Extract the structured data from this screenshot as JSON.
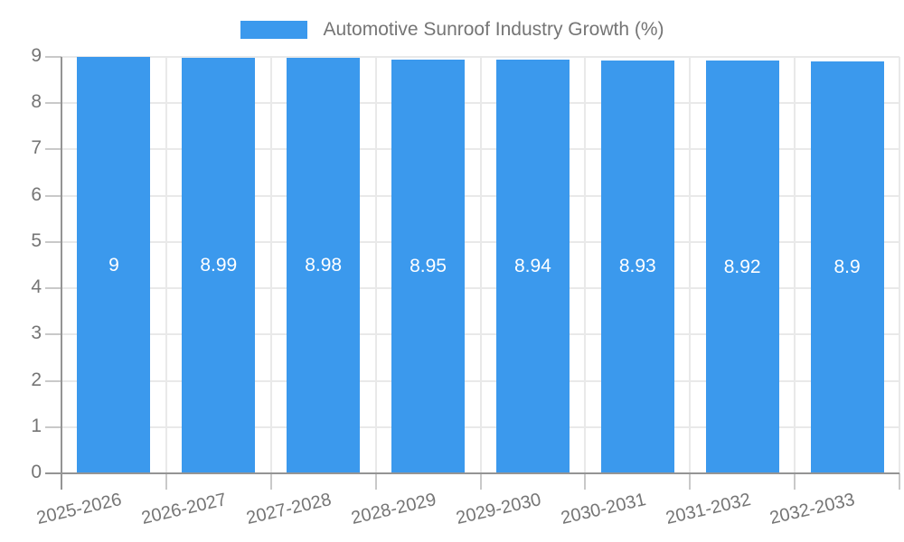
{
  "chart_data": {
    "type": "bar",
    "legend": {
      "position": "top",
      "label": "Automotive Sunroof Industry Growth (%)"
    },
    "categories": [
      "2025-2026",
      "2026-2027",
      "2027-2028",
      "2028-2029",
      "2029-2030",
      "2030-2031",
      "2031-2032",
      "2032-2033"
    ],
    "series": [
      {
        "name": "Automotive Sunroof Industry Growth (%)",
        "values": [
          9,
          8.99,
          8.98,
          8.95,
          8.94,
          8.93,
          8.92,
          8.9
        ]
      }
    ],
    "bar_value_labels": [
      "9",
      "8.99",
      "8.98",
      "8.95",
      "8.94",
      "8.93",
      "8.92",
      "8.9"
    ],
    "ylim": [
      0,
      9
    ],
    "ytick_labels": [
      "0",
      "1",
      "2",
      "3",
      "4",
      "5",
      "6",
      "7",
      "8",
      "9"
    ],
    "grid": true,
    "colors": {
      "bar": "#3B99ED",
      "bar_label_text": "#FFFFFF",
      "axis_text": "#757575",
      "gridline": "#E9E9E9",
      "tick": "#C9C9C9",
      "axis_line": "#949494",
      "background": "#FFFFFF"
    }
  }
}
